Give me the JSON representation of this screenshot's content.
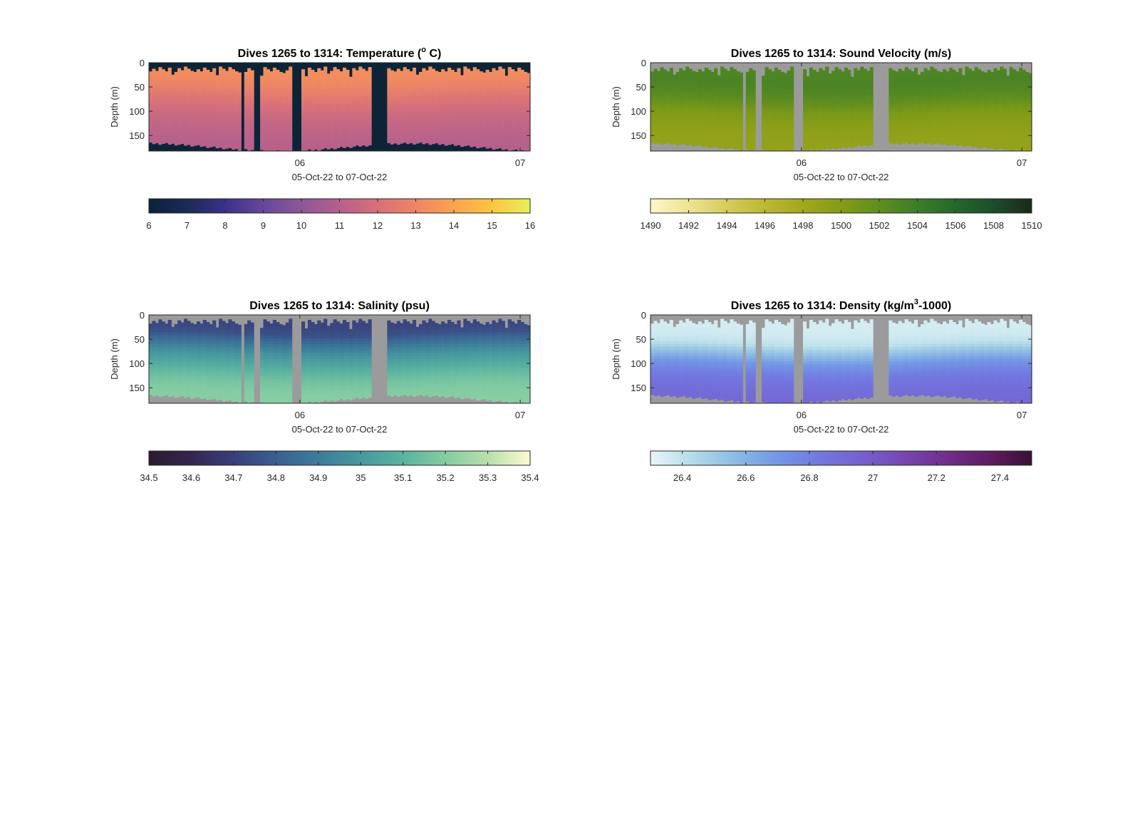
{
  "figure": {
    "x_axis_label": "05-Oct-22 to 07-Oct-22",
    "y_axis_label": "Depth (m)",
    "x_ticks": [
      {
        "day": 1.0,
        "label": "06"
      },
      {
        "day": 2.0,
        "label": "07"
      }
    ],
    "y_ticks": [
      0,
      50,
      100,
      150
    ]
  },
  "chart_data": [
    {
      "id": "temperature",
      "type": "heatmap",
      "title": "Dives 1265 to 1314: Temperature (",
      "title_sup": "o",
      "title_suffix": " C)",
      "xlabel": "05-Oct-22 to 07-Oct-22",
      "ylabel": "Depth (m)",
      "ylim": [
        0,
        182
      ],
      "xlim_days": [
        0.315,
        2.045
      ],
      "nan_color": "#0c2436",
      "colorbar": {
        "ticks": [
          "6",
          "7",
          "8",
          "9",
          "10",
          "11",
          "12",
          "13",
          "14",
          "15",
          "16"
        ],
        "range": [
          6,
          16
        ],
        "stops": [
          "#0a2239",
          "#1a2a55",
          "#3b3188",
          "#66479a",
          "#8c5896",
          "#b5608c",
          "#d7707a",
          "#ee8566",
          "#fba34e",
          "#fbc641",
          "#e8ef59"
        ]
      },
      "profile": {
        "depths": [
          0,
          20,
          40,
          60,
          80,
          100,
          120,
          140,
          160,
          182
        ],
        "values": [
          13.3,
          13.3,
          13.1,
          12.7,
          12.2,
          11.8,
          11.5,
          11.3,
          11.1,
          11.0
        ]
      }
    },
    {
      "id": "sound-velocity",
      "type": "heatmap",
      "title": "Dives 1265 to 1314: Sound Velocity (m/s)",
      "title_sup": "",
      "title_suffix": "",
      "xlabel": "05-Oct-22 to 07-Oct-22",
      "ylabel": "Depth (m)",
      "ylim": [
        0,
        182
      ],
      "xlim_days": [
        0.315,
        2.045
      ],
      "nan_color": "#9b9b9b",
      "colorbar": {
        "ticks": [
          "1490",
          "1492",
          "1494",
          "1496",
          "1498",
          "1500",
          "1502",
          "1504",
          "1506",
          "1508",
          "1510"
        ],
        "range": [
          1490,
          1510
        ],
        "stops": [
          "#fdf7c6",
          "#eee394",
          "#d6cc5c",
          "#bcb833",
          "#a2a71e",
          "#849c17",
          "#5f8e1f",
          "#3e7d29",
          "#23682c",
          "#1d4d29",
          "#18291c"
        ]
      },
      "profile": {
        "depths": [
          0,
          20,
          40,
          60,
          80,
          100,
          120,
          140,
          160,
          182
        ],
        "values": [
          1503.0,
          1503.0,
          1503.2,
          1502.8,
          1501.9,
          1500.6,
          1499.8,
          1499.3,
          1499.0,
          1498.9
        ]
      }
    },
    {
      "id": "salinity",
      "type": "heatmap",
      "title": "Dives 1265 to 1314: Salinity (psu)",
      "title_sup": "",
      "title_suffix": "",
      "xlabel": "05-Oct-22 to 07-Oct-22",
      "ylabel": "Depth (m)",
      "ylim": [
        0,
        182
      ],
      "xlim_days": [
        0.315,
        2.045
      ],
      "nan_color": "#9b9b9b",
      "colorbar": {
        "ticks": [
          "34.5",
          "34.6",
          "34.7",
          "34.8",
          "34.9",
          "35",
          "35.1",
          "35.2",
          "35.3",
          "35.4"
        ],
        "range": [
          34.5,
          35.4
        ],
        "stops": [
          "#2b1a2e",
          "#33264f",
          "#3a3e7a",
          "#3a5f91",
          "#3c7b9a",
          "#47989f",
          "#5bb3a0",
          "#84cca2",
          "#b6e0ac",
          "#fefad0"
        ]
      },
      "profile": {
        "depths": [
          0,
          20,
          40,
          60,
          80,
          100,
          120,
          140,
          160,
          182
        ],
        "values": [
          34.72,
          34.72,
          34.76,
          34.88,
          34.98,
          35.05,
          35.12,
          35.17,
          35.2,
          35.21
        ]
      }
    },
    {
      "id": "density",
      "type": "heatmap",
      "title": "Dives 1265 to 1314: Density (kg/m",
      "title_sup": "3",
      "title_suffix": "-1000)",
      "xlabel": "05-Oct-22 to 07-Oct-22",
      "ylabel": "Depth (m)",
      "ylim": [
        0,
        182
      ],
      "xlim_days": [
        0.315,
        2.045
      ],
      "nan_color": "#9b9b9b",
      "colorbar": {
        "ticks": [
          "26.4",
          "26.6",
          "26.8",
          "27",
          "27.2",
          "27.4"
        ],
        "range": [
          26.3,
          27.5
        ],
        "tick_values": [
          26.4,
          26.6,
          26.8,
          27.0,
          27.2,
          27.4
        ],
        "stops": [
          "#e8f7f8",
          "#b3dbe9",
          "#8dbbe4",
          "#7397e6",
          "#7278e0",
          "#7660cf",
          "#7646b0",
          "#6f2e8c",
          "#5e1c62",
          "#3b0f35"
        ]
      },
      "profile": {
        "depths": [
          0,
          20,
          40,
          60,
          80,
          100,
          120,
          140,
          160,
          182
        ],
        "values": [
          26.35,
          26.35,
          26.36,
          26.4,
          26.55,
          26.7,
          26.8,
          26.86,
          26.9,
          26.92
        ]
      }
    }
  ]
}
